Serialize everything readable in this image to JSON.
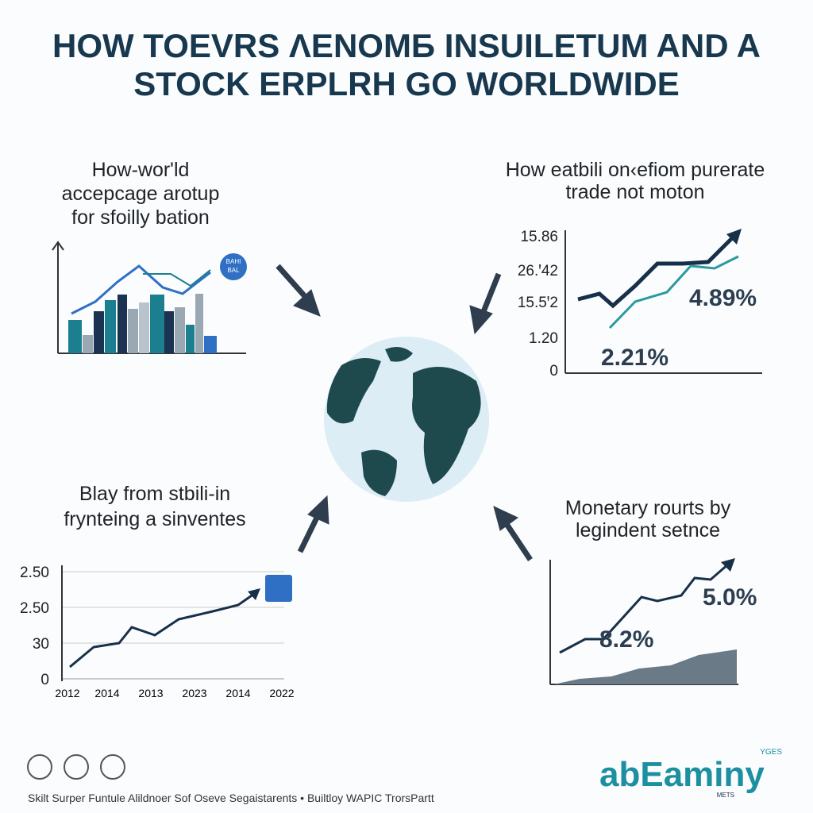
{
  "header": {
    "title_lines": [
      "HOW TOEVRS ΛENOMБ INSUILЕTUM AND A",
      "STOCK ERPLRH GO WORLDWIDE"
    ]
  },
  "panels": {
    "top_left": {
      "heading": [
        "How-wor'ld",
        "accepcage arotup",
        "for sfoilly bation"
      ],
      "badge": [
        "BAHI",
        "BAL"
      ]
    },
    "top_right": {
      "heading": [
        "How eatbili on‹efiom purerate",
        "trade not moton"
      ],
      "tick_labels": [
        "15.86",
        "26.ꞌ42",
        "15.5ꞌ2",
        "1.20",
        "0"
      ],
      "labels": [
        "4.89%",
        "2.21%"
      ]
    },
    "bottom_left": {
      "heading": [
        "Blay from stbili-in",
        "frynteing a sinventes"
      ],
      "tick_labels": [
        "2.50",
        "2.50",
        "30",
        "0"
      ],
      "x_labels": [
        "2012",
        "2014",
        "2013",
        "2023",
        "2014",
        "2022"
      ]
    },
    "bottom_right": {
      "heading": [
        "Monetary rourts by",
        "legindent setnce"
      ],
      "labels": [
        "5.0%",
        "8.2%"
      ]
    }
  },
  "footer": {
    "text": "Skilt Surper Funtule Alildnoer Sof Osеve Segaistarents • Builtloy WAPIC TrorsPartt",
    "brand": "abEaminy",
    "brand_top": "YGES",
    "brand_bottom": "METS"
  }
}
